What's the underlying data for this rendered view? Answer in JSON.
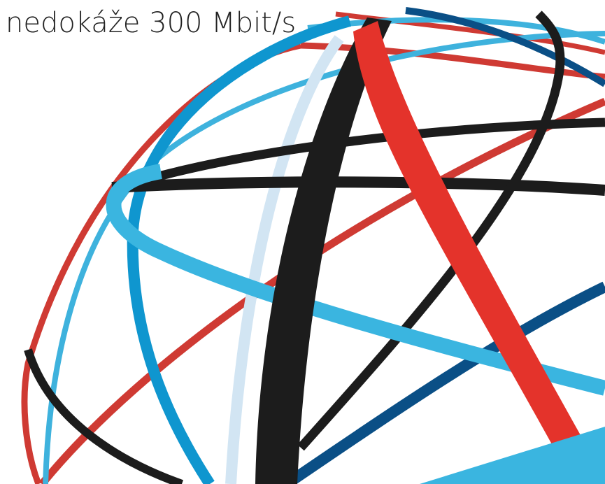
{
  "text": "nedokáže 300 Mbit/s"
}
